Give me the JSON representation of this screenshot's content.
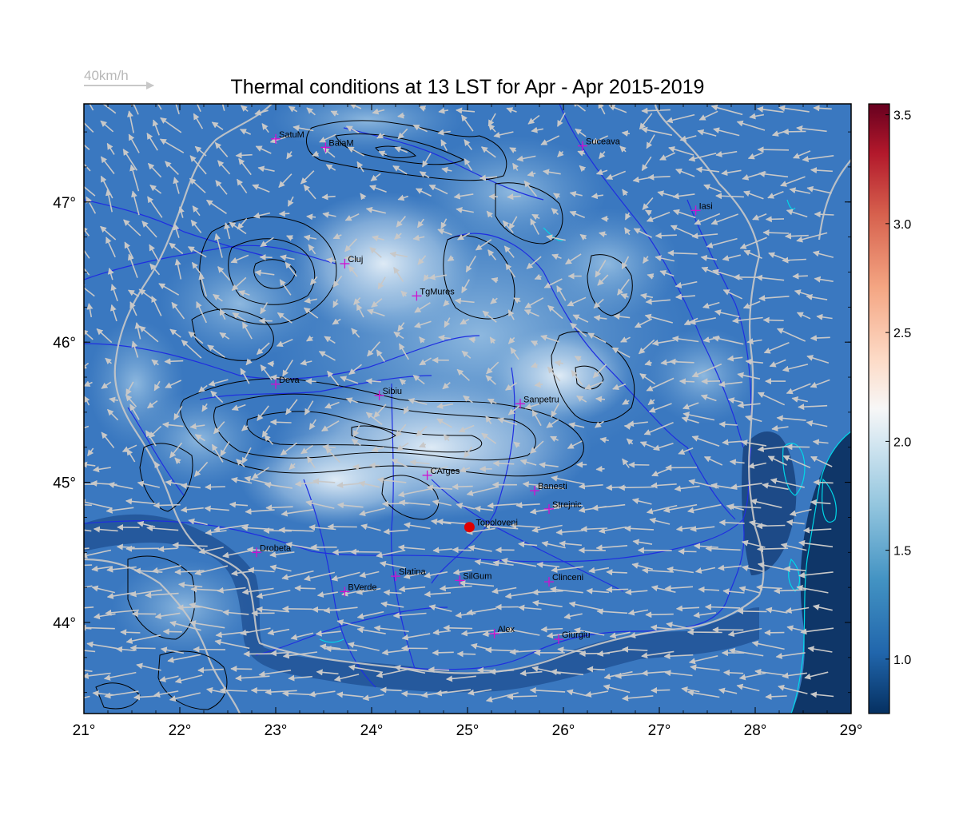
{
  "title": "Thermal conditions at 13 LST for Apr - Apr  2015-2019",
  "reference_vector_label": "40km/h",
  "colors": {
    "background_field": "#3a78c0",
    "arrow": "#c8c8c8",
    "border": "#c8c8c8",
    "river": "#1f2ee0",
    "contour": "#000000",
    "city_marker": "#d010d0",
    "highlight_point": "#e00000",
    "coast": "#00d8e8"
  },
  "axes": {
    "x_ticks": [
      "21°",
      "22°",
      "23°",
      "24°",
      "25°",
      "26°",
      "27°",
      "28°",
      "29°"
    ],
    "y_ticks": [
      "44°",
      "45°",
      "46°",
      "47°"
    ],
    "lon_range": [
      21,
      29
    ],
    "lat_range": [
      43.35,
      47.7
    ]
  },
  "colorbar": {
    "ticks": [
      "1.0",
      "1.5",
      "2.0",
      "2.5",
      "3.0",
      "3.5"
    ],
    "range": [
      0.75,
      3.55
    ],
    "colormap": "RdBu_r"
  },
  "cities": [
    {
      "name": "SatuM",
      "lon": 23.0,
      "lat": 47.45
    },
    {
      "name": "BaiaM",
      "lon": 23.52,
      "lat": 47.39
    },
    {
      "name": "Suceava",
      "lon": 26.2,
      "lat": 47.4
    },
    {
      "name": "Iasi",
      "lon": 27.38,
      "lat": 46.94
    },
    {
      "name": "Cluj",
      "lon": 23.72,
      "lat": 46.56
    },
    {
      "name": "TgMures",
      "lon": 24.47,
      "lat": 46.33
    },
    {
      "name": "Deva",
      "lon": 23.0,
      "lat": 45.7
    },
    {
      "name": "Sibiu",
      "lon": 24.08,
      "lat": 45.62
    },
    {
      "name": "Sanpetru",
      "lon": 25.55,
      "lat": 45.56
    },
    {
      "name": "CArges",
      "lon": 24.58,
      "lat": 45.05
    },
    {
      "name": "Banesti",
      "lon": 25.7,
      "lat": 44.94
    },
    {
      "name": "Strejnic",
      "lon": 25.85,
      "lat": 44.81
    },
    {
      "name": "Drobeta",
      "lon": 22.8,
      "lat": 44.5
    },
    {
      "name": "Slatina",
      "lon": 24.25,
      "lat": 44.33
    },
    {
      "name": "SilGum",
      "lon": 24.92,
      "lat": 44.3
    },
    {
      "name": "Clinceni",
      "lon": 25.85,
      "lat": 44.29
    },
    {
      "name": "BVerde",
      "lon": 23.72,
      "lat": 44.22
    },
    {
      "name": "Alex",
      "lon": 25.28,
      "lat": 43.92
    },
    {
      "name": "Giurgiu",
      "lon": 25.95,
      "lat": 43.88
    }
  ],
  "highlight_point": {
    "name": "Topoloveni",
    "lon": 25.02,
    "lat": 44.68
  }
}
